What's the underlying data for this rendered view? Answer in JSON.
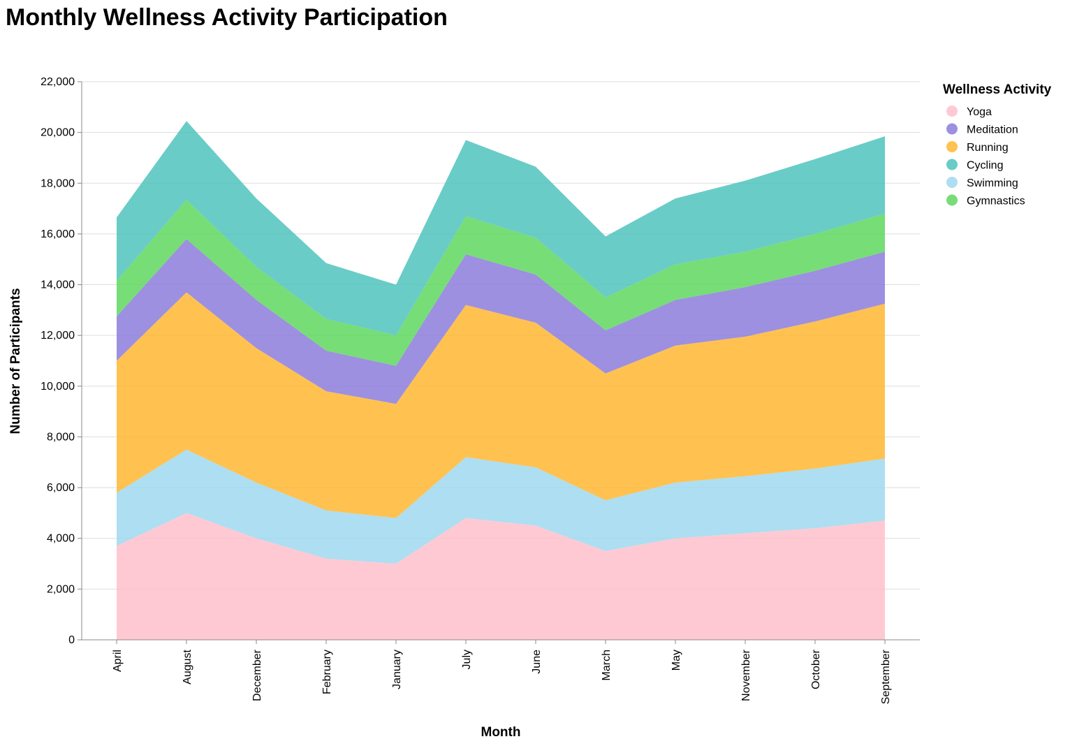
{
  "chart_data": {
    "type": "area",
    "stacked": true,
    "title": "Monthly Wellness Activity Participation",
    "xlabel": "Month",
    "ylabel": "Number of Participants",
    "ylim": [
      0,
      22000
    ],
    "yticks": [
      0,
      2000,
      4000,
      6000,
      8000,
      10000,
      12000,
      14000,
      16000,
      18000,
      20000,
      22000
    ],
    "ytick_labels": [
      "0",
      "2,000",
      "4,000",
      "6,000",
      "8,000",
      "10,000",
      "12,000",
      "14,000",
      "16,000",
      "18,000",
      "20,000",
      "22,000"
    ],
    "categories": [
      "April",
      "August",
      "December",
      "February",
      "January",
      "July",
      "June",
      "March",
      "May",
      "November",
      "October",
      "September"
    ],
    "grid": true,
    "legend": {
      "title": "Wellness Activity",
      "placement": "right"
    },
    "series": [
      {
        "name": "Yoga",
        "color": "#ffc0cb",
        "values": [
          3700,
          5000,
          4000,
          3200,
          3000,
          4800,
          4500,
          3500,
          4000,
          4200,
          4400,
          4700
        ]
      },
      {
        "name": "Swimming",
        "color": "#a0d8ef",
        "values": [
          2100,
          2500,
          2200,
          1900,
          1800,
          2400,
          2300,
          2000,
          2200,
          2250,
          2350,
          2450
        ]
      },
      {
        "name": "Running",
        "color": "#ffb732",
        "values": [
          5200,
          6200,
          5300,
          4700,
          4500,
          6000,
          5700,
          5000,
          5400,
          5500,
          5800,
          6100
        ]
      },
      {
        "name": "Meditation",
        "color": "#8c7ddb",
        "values": [
          1750,
          2100,
          1900,
          1600,
          1500,
          2000,
          1900,
          1700,
          1800,
          1950,
          2000,
          2050
        ]
      },
      {
        "name": "Gymnastics",
        "color": "#5fd75f",
        "values": [
          1400,
          1550,
          1300,
          1250,
          1200,
          1500,
          1450,
          1300,
          1400,
          1400,
          1450,
          1500
        ]
      },
      {
        "name": "Cycling",
        "color": "#4fc3bd",
        "values": [
          2500,
          3100,
          2700,
          2200,
          2000,
          3000,
          2800,
          2400,
          2600,
          2800,
          2950,
          3050
        ]
      }
    ],
    "legend_order": [
      "Yoga",
      "Meditation",
      "Running",
      "Cycling",
      "Swimming",
      "Gymnastics"
    ]
  }
}
